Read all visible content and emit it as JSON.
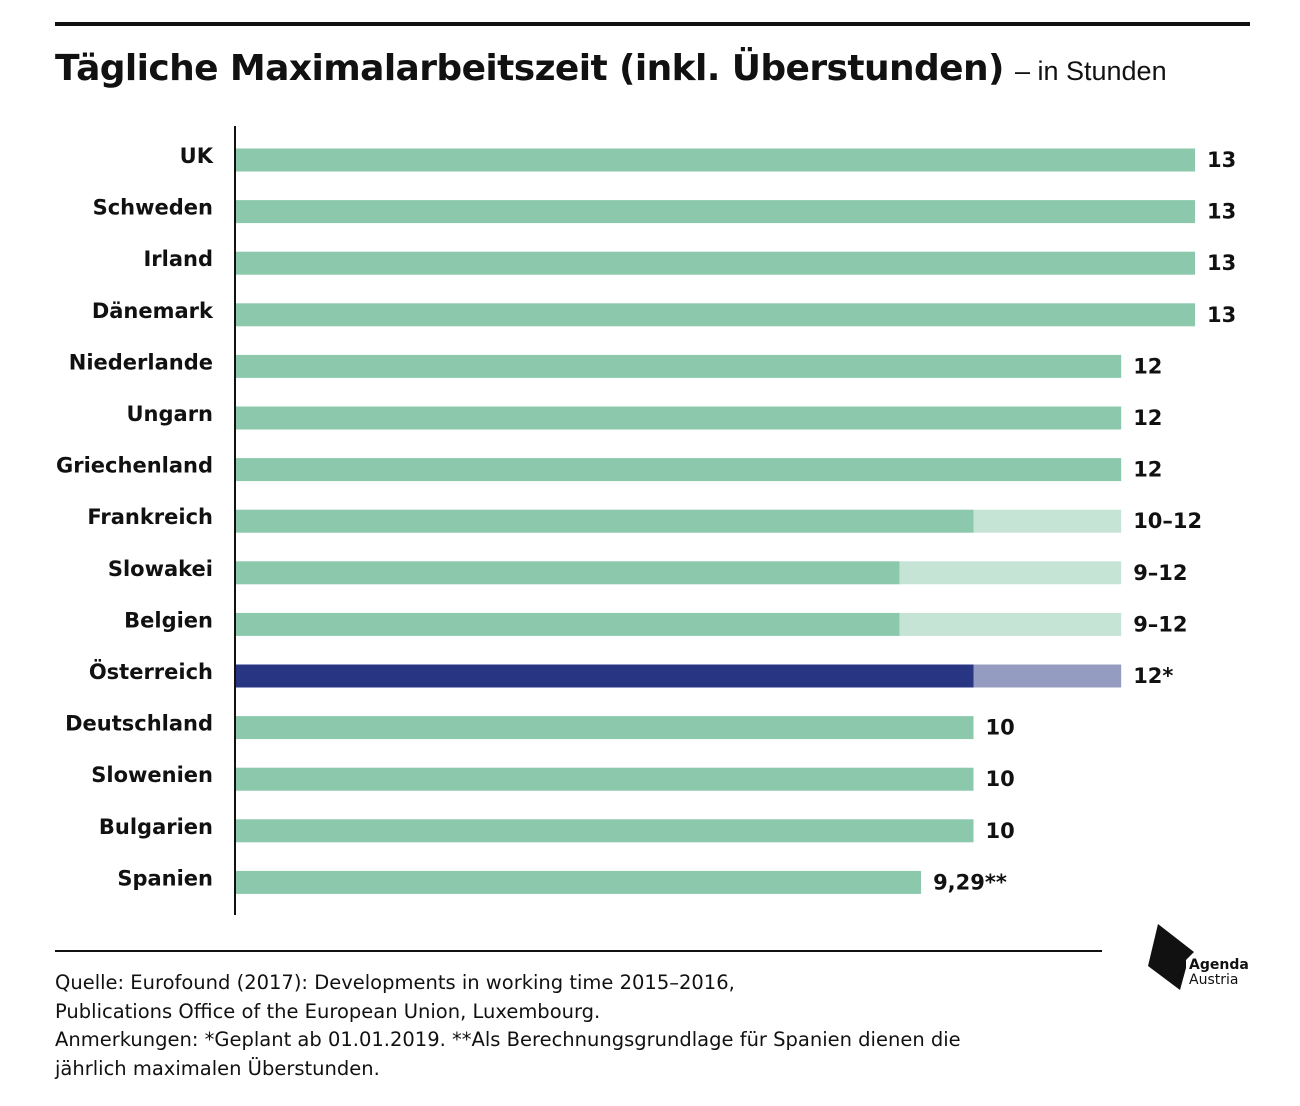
{
  "header": {
    "title": "Tägliche Maximalarbeitszeit (inkl. Überstunden)",
    "subtitle": "– in Stunden"
  },
  "colors": {
    "bar_main": "#8cc9ac",
    "bar_range": "#c6e4d6",
    "highlight_main": "#283583",
    "highlight_range": "#959cc2",
    "axis": "#111111"
  },
  "chart_data": {
    "type": "bar",
    "orientation": "horizontal",
    "title": "Tägliche Maximalarbeitszeit (inkl. Überstunden)",
    "subtitle": "– in Stunden",
    "xlim": [
      0,
      13
    ],
    "grid": false,
    "categories": [
      "UK",
      "Schweden",
      "Irland",
      "Dänemark",
      "Niederlande",
      "Ungarn",
      "Griechenland",
      "Frankreich",
      "Slowakei",
      "Belgien",
      "Österreich",
      "Deutschland",
      "Slowenien",
      "Bulgarien",
      "Spanien"
    ],
    "series": [
      {
        "values": [
          13,
          13,
          13,
          13,
          12,
          12,
          12,
          10,
          9,
          9,
          10,
          10,
          10,
          10,
          9.29
        ]
      },
      {
        "values": [
          0,
          0,
          0,
          0,
          0,
          0,
          0,
          2,
          3,
          3,
          2,
          0,
          0,
          0,
          0
        ]
      }
    ],
    "value_labels": [
      "13",
      "13",
      "13",
      "13",
      "12",
      "12",
      "12",
      "10–12",
      "9–12",
      "9–12",
      "12*",
      "10",
      "10",
      "10",
      "9,29**"
    ],
    "highlight": "Österreich"
  },
  "footer": {
    "lines": [
      "Quelle: Eurofound (2017): Developments in working time 2015–2016,",
      "Publications Office of the European Union, Luxembourg.",
      "Anmerkungen: *Geplant ab 01.01.2019.  **Als Berechnungsgrundlage für Spanien dienen die",
      "jährlich maximalen Überstunden."
    ]
  },
  "logo": {
    "line1": "Agenda",
    "line2": "Austria"
  }
}
